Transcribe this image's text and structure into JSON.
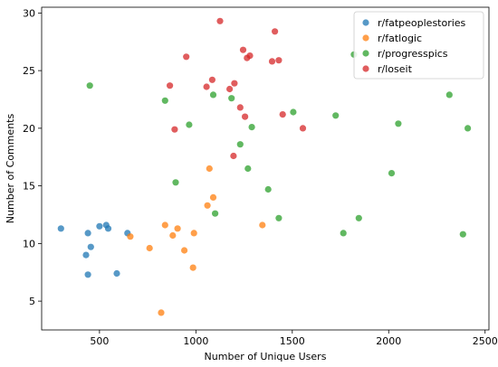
{
  "chart_data": {
    "type": "scatter",
    "title": "",
    "xlabel": "Number of Unique Users",
    "ylabel": "Number of Comments",
    "xlim": [
      200,
      2520
    ],
    "ylim": [
      2.5,
      30.5
    ],
    "xticks": [
      500,
      1000,
      1500,
      2000,
      2500
    ],
    "yticks": [
      5,
      10,
      15,
      20,
      25,
      30
    ],
    "grid": false,
    "legend_position": "top-right",
    "series": [
      {
        "name": "r/fatpeoplestories",
        "color": "#1f77b4",
        "points": [
          [
            300,
            11.3
          ],
          [
            440,
            10.9
          ],
          [
            500,
            11.5
          ],
          [
            535,
            11.6
          ],
          [
            545,
            11.3
          ],
          [
            455,
            9.7
          ],
          [
            430,
            9.0
          ],
          [
            440,
            7.3
          ],
          [
            590,
            7.4
          ],
          [
            645,
            10.9
          ]
        ]
      },
      {
        "name": "r/fatlogic",
        "color": "#ff7f0e",
        "points": [
          [
            660,
            10.6
          ],
          [
            760,
            9.6
          ],
          [
            820,
            4.0
          ],
          [
            840,
            11.6
          ],
          [
            880,
            10.7
          ],
          [
            905,
            11.3
          ],
          [
            940,
            9.4
          ],
          [
            985,
            7.9
          ],
          [
            990,
            10.9
          ],
          [
            1060,
            13.3
          ],
          [
            1070,
            16.5
          ],
          [
            1090,
            14.0
          ],
          [
            1345,
            11.6
          ]
        ]
      },
      {
        "name": "r/progresspics",
        "color": "#2ca02c",
        "points": [
          [
            450,
            23.7
          ],
          [
            840,
            22.4
          ],
          [
            895,
            15.3
          ],
          [
            965,
            20.3
          ],
          [
            1090,
            22.9
          ],
          [
            1100,
            12.6
          ],
          [
            1185,
            22.6
          ],
          [
            1230,
            18.6
          ],
          [
            1270,
            16.5
          ],
          [
            1290,
            20.1
          ],
          [
            1375,
            14.7
          ],
          [
            1430,
            12.2
          ],
          [
            1505,
            21.4
          ],
          [
            1725,
            21.1
          ],
          [
            1765,
            10.9
          ],
          [
            1820,
            26.4
          ],
          [
            1845,
            12.2
          ],
          [
            2015,
            16.1
          ],
          [
            2050,
            20.4
          ],
          [
            2315,
            22.9
          ],
          [
            2385,
            10.8
          ],
          [
            2410,
            20.0
          ]
        ]
      },
      {
        "name": "r/loseit",
        "color": "#d62728",
        "points": [
          [
            865,
            23.7
          ],
          [
            890,
            19.9
          ],
          [
            950,
            26.2
          ],
          [
            1055,
            23.6
          ],
          [
            1085,
            24.2
          ],
          [
            1125,
            29.3
          ],
          [
            1175,
            23.4
          ],
          [
            1195,
            17.6
          ],
          [
            1200,
            23.9
          ],
          [
            1230,
            21.8
          ],
          [
            1245,
            26.8
          ],
          [
            1255,
            21.0
          ],
          [
            1265,
            26.1
          ],
          [
            1280,
            26.3
          ],
          [
            1395,
            25.8
          ],
          [
            1410,
            28.4
          ],
          [
            1430,
            25.9
          ],
          [
            1450,
            21.2
          ],
          [
            1555,
            20.0
          ]
        ]
      }
    ]
  }
}
